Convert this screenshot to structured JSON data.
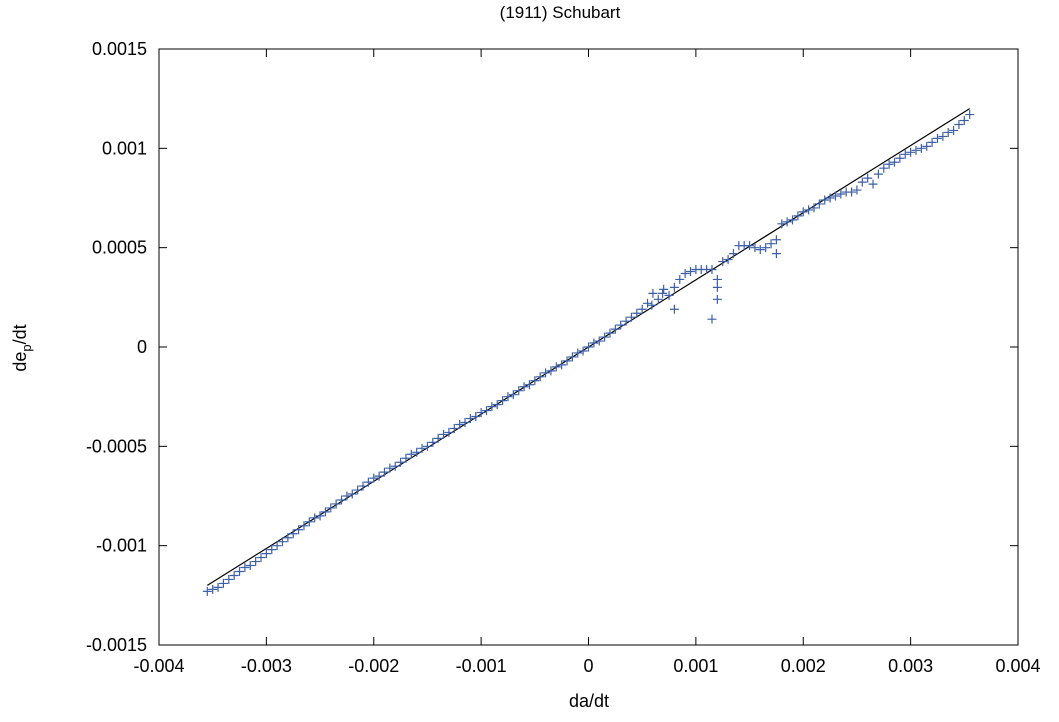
{
  "chart_data": {
    "type": "scatter",
    "title": "(1911) Schubart",
    "xlabel": "da/dt",
    "ylabel_main": "de",
    "ylabel_sub": "p",
    "ylabel_tail": "/dt",
    "xlim": [
      -0.004,
      0.004
    ],
    "ylim": [
      -0.0015,
      0.0015
    ],
    "x_ticks": [
      -0.004,
      -0.003,
      -0.002,
      -0.001,
      0,
      0.001,
      0.002,
      0.003,
      0.004
    ],
    "x_tick_labels": [
      "-0.004",
      "-0.003",
      "-0.002",
      "-0.001",
      "0",
      "0.001",
      "0.002",
      "0.003",
      "0.004"
    ],
    "y_ticks": [
      -0.0015,
      -0.001,
      -0.0005,
      0,
      0.0005,
      0.001,
      0.0015
    ],
    "y_tick_labels": [
      "-0.0015",
      "-0.001",
      "-0.0005",
      "0",
      "0.0005",
      "0.001",
      "0.0015"
    ],
    "grid": false,
    "colors": {
      "points": "#3d5fa8",
      "line": "#000000",
      "frame": "#000000"
    },
    "fit_line": {
      "x": [
        -0.00355,
        0.00355
      ],
      "y": [
        -0.0012,
        0.0012
      ]
    },
    "series": [
      {
        "marker": "plus",
        "x": [
          -0.00355,
          -0.0035,
          -0.00345,
          -0.0034,
          -0.00335,
          -0.0033,
          -0.00325,
          -0.0032,
          -0.00315,
          -0.0031,
          -0.00305,
          -0.003,
          -0.00295,
          -0.0029,
          -0.00285,
          -0.0028,
          -0.00275,
          -0.0027,
          -0.00265,
          -0.0026,
          -0.00255,
          -0.0025,
          -0.00245,
          -0.0024,
          -0.00235,
          -0.0023,
          -0.00225,
          -0.0022,
          -0.00215,
          -0.0021,
          -0.00205,
          -0.002,
          -0.00195,
          -0.0019,
          -0.00185,
          -0.0018,
          -0.00175,
          -0.0017,
          -0.00165,
          -0.0016,
          -0.00155,
          -0.0015,
          -0.00145,
          -0.0014,
          -0.00135,
          -0.0013,
          -0.00125,
          -0.0012,
          -0.00115,
          -0.0011,
          -0.00105,
          -0.001,
          -0.00095,
          -0.0009,
          -0.00085,
          -0.0008,
          -0.00075,
          -0.0007,
          -0.00065,
          -0.0006,
          -0.00055,
          -0.0005,
          -0.00045,
          -0.0004,
          -0.00035,
          -0.0003,
          -0.00025,
          -0.0002,
          -0.00015,
          -0.0001,
          -5e-05,
          0,
          5e-05,
          0.0001,
          0.00015,
          0.0002,
          0.00025,
          0.0003,
          0.00035,
          0.0004,
          0.00045,
          0.0005,
          0.00055,
          0.0006,
          0.00065,
          0.0007,
          0.00075,
          0.0008,
          0.00085,
          0.0009,
          0.00095,
          0.001,
          0.00105,
          0.0011,
          0.00115,
          0.0012,
          0.00125,
          0.0013,
          0.00135,
          0.0014,
          0.00145,
          0.0015,
          0.00155,
          0.0016,
          0.00165,
          0.0017,
          0.00175,
          0.0018,
          0.00185,
          0.0019,
          0.00195,
          0.002,
          0.00205,
          0.0021,
          0.00215,
          0.0022,
          0.00225,
          0.0023,
          0.00235,
          0.0024,
          0.00245,
          0.0025,
          0.00255,
          0.0026,
          0.00265,
          0.0027,
          0.00275,
          0.0028,
          0.00285,
          0.0029,
          0.00295,
          0.003,
          0.00305,
          0.0031,
          0.00315,
          0.0032,
          0.00325,
          0.0033,
          0.00335,
          0.0034,
          0.00345,
          0.0035,
          0.00355,
          0.00059,
          0.00069,
          0.0008,
          0.00115,
          0.0012,
          0.0012,
          0.00175
        ],
        "y": [
          -0.00123,
          -0.00122,
          -0.00121,
          -0.00119,
          -0.00117,
          -0.00115,
          -0.00113,
          -0.00111,
          -0.0011,
          -0.00108,
          -0.00106,
          -0.00104,
          -0.00102,
          -0.001,
          -0.00098,
          -0.00096,
          -0.00094,
          -0.00092,
          -0.0009,
          -0.00088,
          -0.00086,
          -0.00085,
          -0.00083,
          -0.00081,
          -0.00079,
          -0.00077,
          -0.00075,
          -0.00074,
          -0.00072,
          -0.0007,
          -0.00068,
          -0.00066,
          -0.00065,
          -0.00063,
          -0.00061,
          -0.0006,
          -0.00058,
          -0.00056,
          -0.00054,
          -0.00053,
          -0.00051,
          -0.0005,
          -0.00048,
          -0.00046,
          -0.00044,
          -0.00043,
          -0.00041,
          -0.00039,
          -0.00038,
          -0.00036,
          -0.00035,
          -0.00033,
          -0.00032,
          -0.0003,
          -0.00029,
          -0.00027,
          -0.00025,
          -0.00024,
          -0.00022,
          -0.0002,
          -0.00019,
          -0.00017,
          -0.00015,
          -0.00013,
          -0.00012,
          -0.0001,
          -9e-05,
          -7e-05,
          -5e-05,
          -3e-05,
          -2e-05,
          0,
          2e-05,
          3e-05,
          5e-05,
          7e-05,
          9e-05,
          0.00011,
          0.00013,
          0.00015,
          0.00017,
          0.00019,
          0.00022,
          0.00027,
          0.00024,
          0.00029,
          0.00026,
          0.0003,
          0.00034,
          0.00037,
          0.00038,
          0.00039,
          0.00039,
          0.00039,
          0.00039,
          0.0003,
          0.00043,
          0.00044,
          0.00047,
          0.00051,
          0.00051,
          0.00051,
          0.0005,
          0.00049,
          0.0005,
          0.00052,
          0.00054,
          0.00062,
          0.00063,
          0.00064,
          0.00066,
          0.00068,
          0.00069,
          0.0007,
          0.00072,
          0.00074,
          0.00075,
          0.00076,
          0.00077,
          0.00078,
          0.00078,
          0.00079,
          0.00083,
          0.00085,
          0.00082,
          0.00087,
          0.0009,
          0.00092,
          0.00093,
          0.00095,
          0.00097,
          0.00098,
          0.00099,
          0.001,
          0.00101,
          0.00103,
          0.00105,
          0.00106,
          0.00108,
          0.00109,
          0.00112,
          0.00114,
          0.00117,
          0.00021,
          0.00027,
          0.00019,
          0.00014,
          0.00034,
          0.00024,
          0.00047
        ]
      }
    ]
  }
}
